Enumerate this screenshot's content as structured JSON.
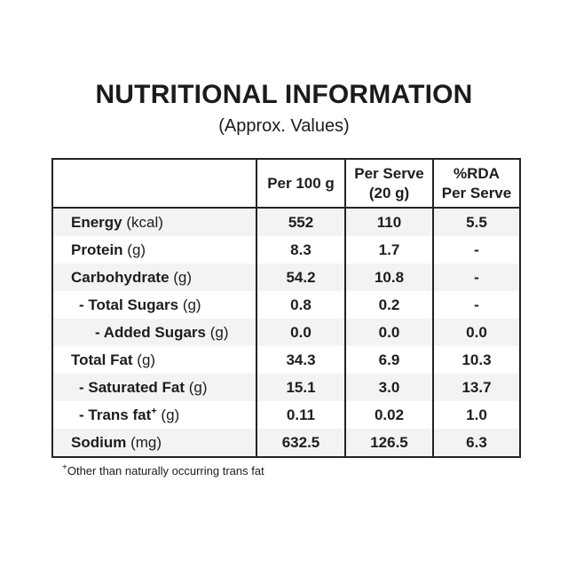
{
  "page": {
    "title": "NUTRITIONAL INFORMATION",
    "subtitle": "(Approx. Values)"
  },
  "table": {
    "headers": [
      {
        "lines": []
      },
      {
        "lines": [
          "Per 100 g"
        ]
      },
      {
        "lines": [
          "Per Serve",
          "(20 g)"
        ]
      },
      {
        "lines": [
          "%RDA",
          "Per Serve"
        ]
      }
    ],
    "rows": [
      {
        "label": "Energy",
        "unit": "(kcal)",
        "sup": "",
        "indent": 0,
        "values": [
          "552",
          "110",
          "5.5"
        ]
      },
      {
        "label": "Protein",
        "unit": "(g)",
        "sup": "",
        "indent": 0,
        "values": [
          "8.3",
          "1.7",
          "-"
        ]
      },
      {
        "label": "Carbohydrate",
        "unit": "(g)",
        "sup": "",
        "indent": 0,
        "values": [
          "54.2",
          "10.8",
          "-"
        ]
      },
      {
        "label": "- Total Sugars",
        "unit": "(g)",
        "sup": "",
        "indent": 1,
        "values": [
          "0.8",
          "0.2",
          "-"
        ]
      },
      {
        "label": "- Added Sugars",
        "unit": "(g)",
        "sup": "",
        "indent": 2,
        "values": [
          "0.0",
          "0.0",
          "0.0"
        ]
      },
      {
        "label": "Total Fat",
        "unit": "(g)",
        "sup": "",
        "indent": 0,
        "values": [
          "34.3",
          "6.9",
          "10.3"
        ]
      },
      {
        "label": "- Saturated Fat",
        "unit": "(g)",
        "sup": "",
        "indent": 1,
        "values": [
          "15.1",
          "3.0",
          "13.7"
        ]
      },
      {
        "label": "- Trans fat",
        "unit": "(g)",
        "sup": "+",
        "indent": 1,
        "values": [
          "0.11",
          "0.02",
          "1.0"
        ]
      },
      {
        "label": "Sodium",
        "unit": "(mg)",
        "sup": "",
        "indent": 0,
        "values": [
          "632.5",
          "126.5",
          "6.3"
        ]
      }
    ]
  },
  "footnote": {
    "marker": "+",
    "text": "Other than naturally occurring trans fat"
  },
  "colors": {
    "text": "#1d1d1d",
    "border": "#232323",
    "stripe": "#f3f3f3",
    "background": "#ffffff"
  }
}
